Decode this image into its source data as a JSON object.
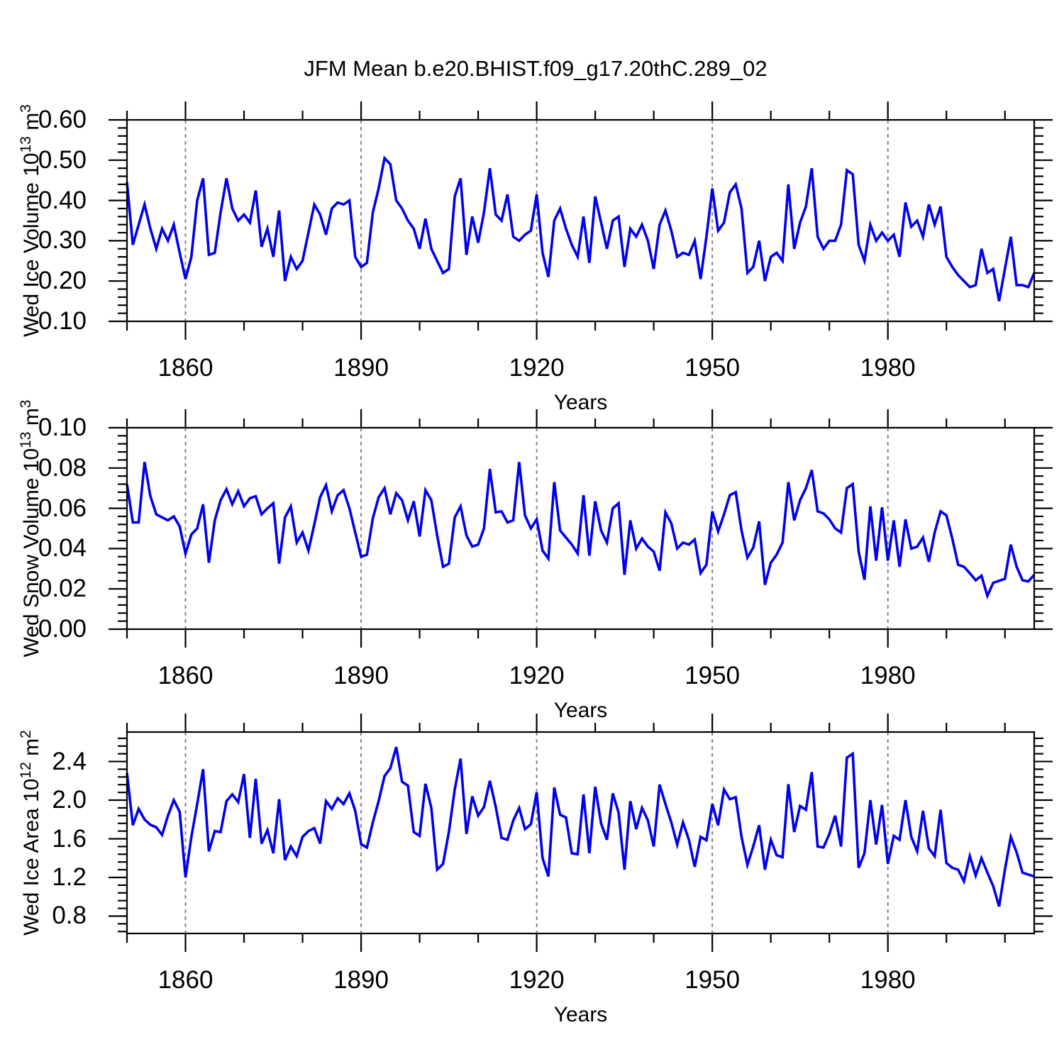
{
  "title": "JFM Mean b.e20.BHIST.f09_g17.20thC.289_02",
  "colors": {
    "line": "#0000ee",
    "grid": "#848484",
    "frame": "#000000",
    "background": "#ffffff"
  },
  "x_axis": {
    "label": "Years",
    "start_year": 1850,
    "end_year": 2005,
    "major_ticks": [
      1860,
      1890,
      1920,
      1950,
      1980
    ],
    "major_tick_labels": [
      "1860",
      "1890",
      "1920",
      "1950",
      "1980"
    ],
    "minor_step_years": 10,
    "gridlines_dashed": true
  },
  "chart_data": [
    {
      "type": "line",
      "title": "JFM Mean b.e20.BHIST.f09_g17.20thC.289_02",
      "name": "wed-ice-volume",
      "ylabel_text": "Wed Ice Volume 10^13 m^3",
      "ylabel_parts": [
        [
          "t",
          "Wed Ice Volume 10"
        ],
        [
          "s",
          "13"
        ],
        [
          "t",
          " m"
        ],
        [
          "s",
          "3"
        ]
      ],
      "xlabel": "Years",
      "ylim": [
        0.1,
        0.6
      ],
      "yticks": [
        0.1,
        0.2,
        0.3,
        0.4,
        0.5,
        0.6
      ],
      "ytick_labels": [
        "0.10",
        "0.20",
        "0.30",
        "0.40",
        "0.50",
        "0.60"
      ],
      "y_minor_step": 0.02,
      "grid": "vertical-dashed-only",
      "legend": "none",
      "x_start": 1850,
      "x_step": 1,
      "values": [
        0.445,
        0.29,
        0.34,
        0.39,
        0.33,
        0.28,
        0.33,
        0.3,
        0.34,
        0.27,
        0.205,
        0.26,
        0.4,
        0.455,
        0.265,
        0.27,
        0.37,
        0.455,
        0.38,
        0.35,
        0.365,
        0.345,
        0.425,
        0.285,
        0.33,
        0.26,
        0.375,
        0.2,
        0.26,
        0.23,
        0.25,
        0.32,
        0.39,
        0.365,
        0.315,
        0.38,
        0.395,
        0.39,
        0.4,
        0.26,
        0.235,
        0.245,
        0.37,
        0.43,
        0.505,
        0.49,
        0.4,
        0.38,
        0.35,
        0.33,
        0.28,
        0.355,
        0.28,
        0.25,
        0.22,
        0.23,
        0.41,
        0.455,
        0.265,
        0.36,
        0.295,
        0.37,
        0.48,
        0.365,
        0.35,
        0.415,
        0.31,
        0.3,
        0.315,
        0.325,
        0.415,
        0.27,
        0.21,
        0.35,
        0.38,
        0.33,
        0.29,
        0.26,
        0.36,
        0.245,
        0.41,
        0.345,
        0.28,
        0.35,
        0.36,
        0.235,
        0.33,
        0.31,
        0.34,
        0.3,
        0.23,
        0.34,
        0.375,
        0.325,
        0.26,
        0.27,
        0.265,
        0.3,
        0.205,
        0.31,
        0.43,
        0.325,
        0.345,
        0.42,
        0.44,
        0.38,
        0.22,
        0.235,
        0.3,
        0.2,
        0.26,
        0.27,
        0.25,
        0.44,
        0.28,
        0.345,
        0.385,
        0.48,
        0.31,
        0.28,
        0.3,
        0.3,
        0.34,
        0.475,
        0.465,
        0.29,
        0.25,
        0.34,
        0.3,
        0.32,
        0.3,
        0.315,
        0.26,
        0.395,
        0.335,
        0.35,
        0.31,
        0.39,
        0.34,
        0.385,
        0.26,
        0.235,
        0.215,
        0.2,
        0.185,
        0.19,
        0.28,
        0.22,
        0.23,
        0.15,
        0.23,
        0.31,
        0.19,
        0.19,
        0.185,
        0.22
      ]
    },
    {
      "type": "line",
      "name": "wed-snow-volume",
      "ylabel_text": "Wed Snow Volume 10^13 m^3",
      "ylabel_parts": [
        [
          "t",
          "Wed Snow Volume 10"
        ],
        [
          "s",
          "13"
        ],
        [
          "t",
          " m"
        ],
        [
          "s",
          "3"
        ]
      ],
      "xlabel": "Years",
      "ylim": [
        0.0,
        0.1
      ],
      "yticks": [
        0.0,
        0.02,
        0.04,
        0.06,
        0.08,
        0.1
      ],
      "ytick_labels": [
        "0.00",
        "0.02",
        "0.04",
        "0.06",
        "0.08",
        "0.10"
      ],
      "y_minor_step": 0.004,
      "grid": "vertical-dashed-only",
      "legend": "none",
      "x_start": 1850,
      "x_step": 1,
      "values": [
        0.072,
        0.053,
        0.053,
        0.083,
        0.066,
        0.057,
        0.0555,
        0.054,
        0.056,
        0.051,
        0.0375,
        0.047,
        0.05,
        0.062,
        0.033,
        0.054,
        0.064,
        0.0695,
        0.062,
        0.0685,
        0.061,
        0.065,
        0.066,
        0.057,
        0.06,
        0.0625,
        0.0325,
        0.0555,
        0.061,
        0.043,
        0.048,
        0.039,
        0.052,
        0.0655,
        0.0715,
        0.0585,
        0.0665,
        0.069,
        0.06,
        0.048,
        0.036,
        0.037,
        0.055,
        0.0655,
        0.07,
        0.057,
        0.0675,
        0.064,
        0.054,
        0.0635,
        0.046,
        0.069,
        0.064,
        0.0465,
        0.031,
        0.0325,
        0.0555,
        0.061,
        0.0465,
        0.041,
        0.042,
        0.05,
        0.0795,
        0.058,
        0.0585,
        0.053,
        0.054,
        0.083,
        0.0565,
        0.05,
        0.0545,
        0.039,
        0.035,
        0.073,
        0.049,
        0.0455,
        0.042,
        0.0375,
        0.0665,
        0.0365,
        0.0635,
        0.049,
        0.043,
        0.06,
        0.0625,
        0.027,
        0.054,
        0.04,
        0.045,
        0.041,
        0.0385,
        0.029,
        0.058,
        0.0525,
        0.04,
        0.043,
        0.042,
        0.0445,
        0.0278,
        0.032,
        0.0585,
        0.0485,
        0.057,
        0.0665,
        0.068,
        0.049,
        0.0355,
        0.0405,
        0.0535,
        0.022,
        0.033,
        0.037,
        0.043,
        0.073,
        0.054,
        0.064,
        0.07,
        0.079,
        0.0585,
        0.0575,
        0.0545,
        0.05,
        0.048,
        0.07,
        0.072,
        0.0385,
        0.0245,
        0.061,
        0.034,
        0.0605,
        0.034,
        0.054,
        0.031,
        0.0545,
        0.04,
        0.041,
        0.0455,
        0.0335,
        0.048,
        0.0585,
        0.0565,
        0.045,
        0.032,
        0.031,
        0.0278,
        0.0243,
        0.0265,
        0.0165,
        0.023,
        0.024,
        0.025,
        0.042,
        0.031,
        0.0243,
        0.0237,
        0.027
      ]
    },
    {
      "type": "line",
      "name": "wed-ice-area",
      "ylabel_text": "Wed Ice Area 10^12 m^2",
      "ylabel_parts": [
        [
          "t",
          "Wed Ice Area 10"
        ],
        [
          "s",
          "12"
        ],
        [
          "t",
          " m"
        ],
        [
          "s",
          "2"
        ]
      ],
      "xlabel": "Years",
      "ylim": [
        0.62,
        2.705
      ],
      "yticks": [
        0.8,
        1.2,
        1.6,
        2.0,
        2.4
      ],
      "ytick_labels": [
        "0.8",
        "1.2",
        "1.6",
        "2.0",
        "2.4"
      ],
      "y_minor_step": 0.08,
      "grid": "vertical-dashed-only",
      "legend": "none",
      "x_start": 1850,
      "x_step": 1,
      "values": [
        2.28,
        1.74,
        1.91,
        1.8,
        1.745,
        1.72,
        1.64,
        1.84,
        2.0,
        1.88,
        1.2,
        1.62,
        1.96,
        2.32,
        1.47,
        1.68,
        1.67,
        1.99,
        2.06,
        1.98,
        2.27,
        1.61,
        2.22,
        1.55,
        1.69,
        1.45,
        2.01,
        1.38,
        1.52,
        1.42,
        1.62,
        1.68,
        1.71,
        1.55,
        1.99,
        1.91,
        2.02,
        1.96,
        2.07,
        1.89,
        1.545,
        1.51,
        1.77,
        1.99,
        2.25,
        2.33,
        2.55,
        2.19,
        2.15,
        1.67,
        1.63,
        2.17,
        1.92,
        1.28,
        1.34,
        1.67,
        2.11,
        2.43,
        1.65,
        2.04,
        1.84,
        1.93,
        2.2,
        1.93,
        1.61,
        1.59,
        1.79,
        1.92,
        1.7,
        1.75,
        2.08,
        1.4,
        1.21,
        2.13,
        1.85,
        1.82,
        1.45,
        1.44,
        2.06,
        1.45,
        2.14,
        1.76,
        1.59,
        2.07,
        1.87,
        1.28,
        1.99,
        1.7,
        1.92,
        1.79,
        1.52,
        2.16,
        1.96,
        1.77,
        1.54,
        1.77,
        1.59,
        1.31,
        1.62,
        1.585,
        1.96,
        1.74,
        2.11,
        2.01,
        2.03,
        1.62,
        1.33,
        1.52,
        1.74,
        1.28,
        1.59,
        1.43,
        1.41,
        2.165,
        1.67,
        1.94,
        1.9,
        2.29,
        1.52,
        1.51,
        1.65,
        1.84,
        1.52,
        2.44,
        2.48,
        1.3,
        1.45,
        2.0,
        1.54,
        1.95,
        1.34,
        1.63,
        1.59,
        2.0,
        1.62,
        1.47,
        1.89,
        1.5,
        1.42,
        1.9,
        1.35,
        1.3,
        1.28,
        1.16,
        1.42,
        1.22,
        1.4,
        1.25,
        1.11,
        0.9,
        1.28,
        1.62,
        1.46,
        1.25,
        1.23,
        1.21
      ]
    }
  ]
}
